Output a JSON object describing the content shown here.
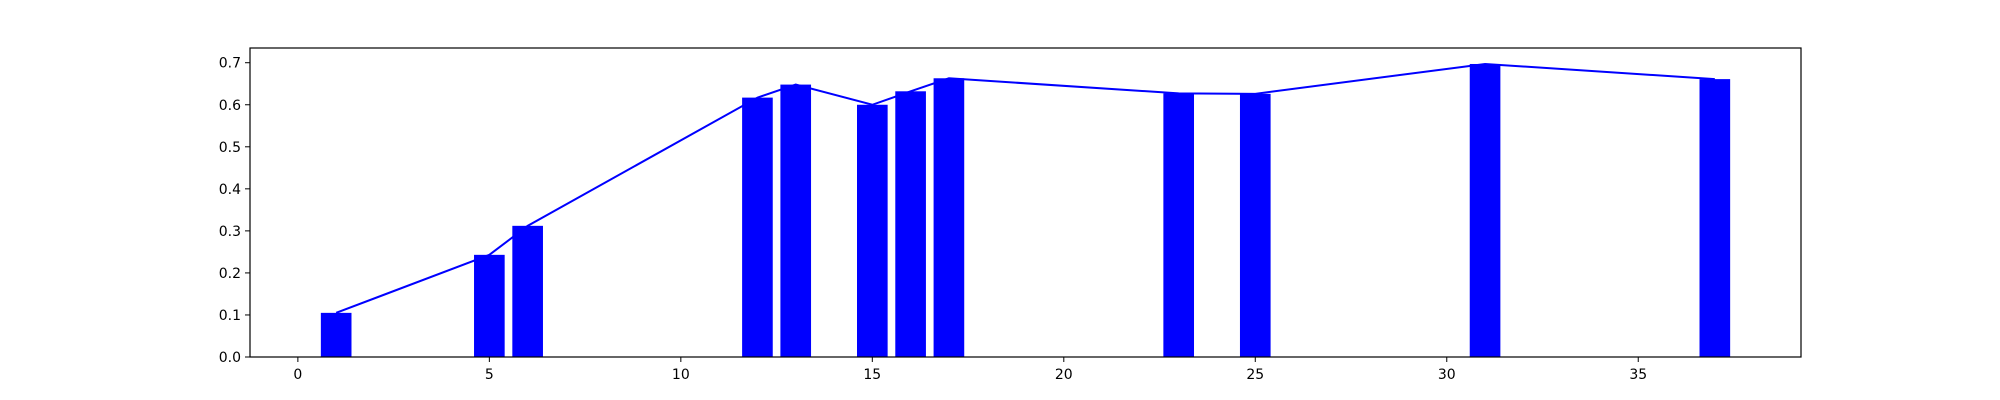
{
  "chart_data": {
    "type": "bar",
    "title": "",
    "xlabel": "",
    "ylabel": "",
    "xlim": [
      -1.25,
      39.25
    ],
    "ylim": [
      0,
      0.735
    ],
    "xticks": [
      0,
      5,
      10,
      15,
      20,
      25,
      30,
      35
    ],
    "yticks": [
      0.0,
      0.1,
      0.2,
      0.3,
      0.4,
      0.5,
      0.6,
      0.7
    ],
    "grid": false,
    "legend": "none",
    "bar_width": 0.8,
    "color": "#0000ff",
    "x": [
      1,
      5,
      6,
      12,
      13,
      15,
      16,
      17,
      23,
      25,
      31,
      37
    ],
    "series": [
      {
        "type": "bar",
        "values": [
          0.105,
          0.243,
          0.312,
          0.617,
          0.648,
          0.6,
          0.632,
          0.663,
          0.627,
          0.626,
          0.697,
          0.661
        ]
      },
      {
        "type": "line",
        "values": [
          0.105,
          0.243,
          0.312,
          0.617,
          0.648,
          0.6,
          0.632,
          0.663,
          0.627,
          0.626,
          0.697,
          0.661
        ]
      }
    ]
  }
}
